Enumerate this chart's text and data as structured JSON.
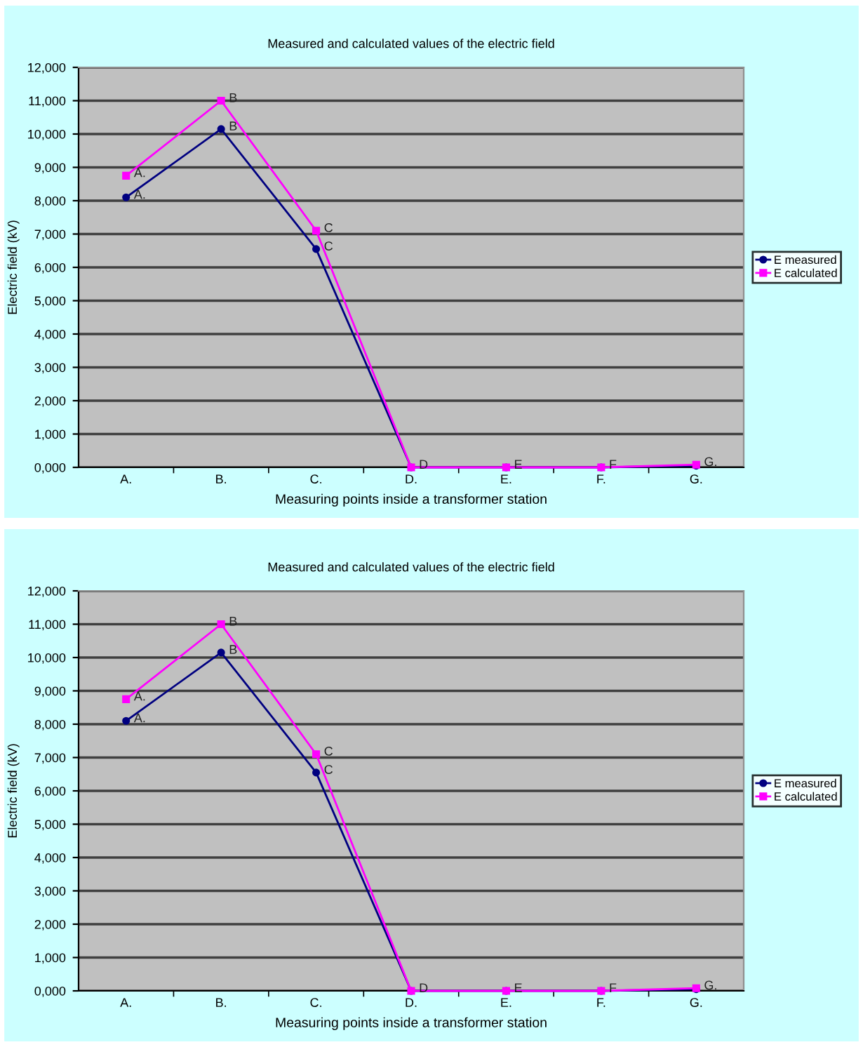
{
  "chart_data": [
    {
      "type": "line",
      "title": "Measured and calculated values of the electric field",
      "xlabel": "Measuring points inside a transformer station",
      "ylabel": "Electric field (kV)",
      "categories": [
        "A.",
        "B.",
        "C.",
        "D.",
        "E.",
        "F.",
        "G."
      ],
      "series": [
        {
          "name": "E measured",
          "color": "#000080",
          "marker": "circle",
          "values": [
            8.1,
            10.15,
            6.55,
            0,
            0,
            0,
            0.05
          ]
        },
        {
          "name": "E calculated",
          "color": "#ff00ff",
          "marker": "square",
          "values": [
            8.75,
            11.0,
            7.1,
            0,
            0,
            0,
            0.08
          ]
        }
      ],
      "ylim": [
        0,
        12
      ],
      "yticks": [
        {
          "value": 0,
          "label": "0,000"
        },
        {
          "value": 1,
          "label": "1,000"
        },
        {
          "value": 2,
          "label": "2,000"
        },
        {
          "value": 3,
          "label": "3,000"
        },
        {
          "value": 4,
          "label": "4,000"
        },
        {
          "value": 5,
          "label": "5,000"
        },
        {
          "value": 6,
          "label": "6,000"
        },
        {
          "value": 7,
          "label": "7,000"
        },
        {
          "value": 8,
          "label": "8,000"
        },
        {
          "value": 9,
          "label": "9,000"
        },
        {
          "value": 10,
          "label": "10,000"
        },
        {
          "value": 11,
          "label": "11,000"
        },
        {
          "value": 12,
          "label": "12,000"
        }
      ],
      "grid": "y",
      "legend": "right",
      "line_style": "solid",
      "annotations": [
        {
          "text": "A.",
          "x": "A.",
          "y": 8.1
        },
        {
          "text": "A.",
          "x": "A.",
          "y": 8.75
        },
        {
          "text": "B",
          "x": "B.",
          "y": 10.15
        },
        {
          "text": "B",
          "x": "B.",
          "y": 11.0
        },
        {
          "text": "C",
          "x": "C.",
          "y": 6.55
        },
        {
          "text": "C",
          "x": "C.",
          "y": 7.1
        },
        {
          "text": "D",
          "x": "D.",
          "y": 0
        },
        {
          "text": "E",
          "x": "E.",
          "y": 0
        },
        {
          "text": "F",
          "x": "F.",
          "y": 0
        },
        {
          "text": "G.",
          "x": "G.",
          "y": 0.08
        }
      ]
    },
    {
      "type": "line",
      "title": "Measured and calculated values of the electric field",
      "xlabel": "Measuring points inside a transformer station",
      "ylabel": "Electric field (kV)",
      "categories": [
        "A.",
        "B.",
        "C.",
        "D.",
        "E.",
        "F.",
        "G."
      ],
      "series": [
        {
          "name": "E measured",
          "color": "#000080",
          "marker": "circle",
          "values": [
            8.1,
            10.15,
            6.55,
            0,
            0,
            0,
            0.05
          ]
        },
        {
          "name": "E calculated",
          "color": "#ff00ff",
          "marker": "square",
          "values": [
            8.75,
            11.0,
            7.1,
            0,
            0,
            0,
            0.08
          ]
        }
      ],
      "ylim": [
        0,
        12
      ],
      "yticks": [
        {
          "value": 0,
          "label": "0,000"
        },
        {
          "value": 1,
          "label": "1,000"
        },
        {
          "value": 2,
          "label": "2,000"
        },
        {
          "value": 3,
          "label": "3,000"
        },
        {
          "value": 4,
          "label": "4,000"
        },
        {
          "value": 5,
          "label": "5,000"
        },
        {
          "value": 6,
          "label": "6,000"
        },
        {
          "value": 7,
          "label": "7,000"
        },
        {
          "value": 8,
          "label": "8,000"
        },
        {
          "value": 9,
          "label": "9,000"
        },
        {
          "value": 10,
          "label": "10,000"
        },
        {
          "value": 11,
          "label": "11,000"
        },
        {
          "value": 12,
          "label": "12,000"
        }
      ],
      "grid": "y",
      "legend": "right",
      "line_style": "solid",
      "annotations": [
        {
          "text": "A.",
          "x": "A.",
          "y": 8.1
        },
        {
          "text": "A.",
          "x": "A.",
          "y": 8.75
        },
        {
          "text": "B",
          "x": "B.",
          "y": 10.15
        },
        {
          "text": "B",
          "x": "B.",
          "y": 11.0
        },
        {
          "text": "C",
          "x": "C.",
          "y": 6.55
        },
        {
          "text": "C",
          "x": "C.",
          "y": 7.1
        },
        {
          "text": "D",
          "x": "D.",
          "y": 0
        },
        {
          "text": "E",
          "x": "E.",
          "y": 0
        },
        {
          "text": "F",
          "x": "F.",
          "y": 0
        },
        {
          "text": "G.",
          "x": "G.",
          "y": 0.08
        }
      ]
    }
  ]
}
